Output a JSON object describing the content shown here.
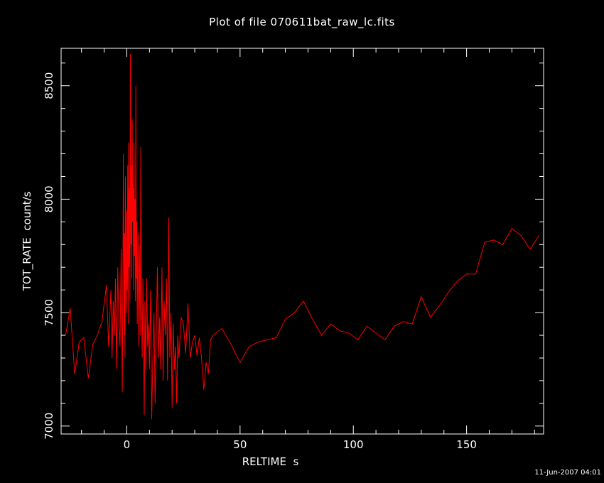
{
  "title": "Plot of file 070611bat_raw_lc.fits",
  "timestamp": "11-Jun-2007 04:01",
  "colors": {
    "background": "#000000",
    "axes": "#ffffff",
    "series": "#ff0000"
  },
  "chart_data": {
    "type": "line",
    "title": "Plot of file 070611bat_raw_lc.fits",
    "xlabel": "RELTIME  s",
    "ylabel": "TOT_RATE  count/s",
    "xlim": [
      -29,
      184
    ],
    "ylim": [
      6965,
      8665
    ],
    "x_ticks": [
      0,
      50,
      100,
      150
    ],
    "y_ticks": [
      7000,
      7500,
      8000,
      8500
    ],
    "x_tick_labels": [
      "0",
      "50",
      "100",
      "150"
    ],
    "y_tick_labels": [
      "7000",
      "7500",
      "8000",
      "8500"
    ],
    "grid": false,
    "series": [
      {
        "x": [
          -27,
          -25,
          -23,
          -21,
          -19,
          -17,
          -15,
          -13,
          -11,
          -9,
          -8,
          -7,
          -6.5,
          -6,
          -5.5,
          -5,
          -4.5,
          -4,
          -3.5,
          -3,
          -2.5,
          -2,
          -1.8,
          -1.5,
          -1.2,
          -1,
          -0.8,
          -0.6,
          -0.4,
          -0.2,
          0,
          0.2,
          0.4,
          0.6,
          0.8,
          1,
          1.2,
          1.4,
          1.6,
          1.8,
          2,
          2.2,
          2.4,
          2.6,
          2.8,
          3,
          3.2,
          3.4,
          3.6,
          3.8,
          4,
          4.2,
          4.4,
          4.6,
          4.8,
          5,
          5.3,
          5.6,
          5.9,
          6.2,
          6.5,
          6.8,
          7.1,
          7.4,
          7.7,
          8,
          8.4,
          8.8,
          9.2,
          9.6,
          10,
          10.5,
          11,
          11.5,
          12,
          12.5,
          13,
          13.5,
          14,
          14.5,
          15,
          15.5,
          16,
          16.5,
          17,
          17.5,
          18,
          18.5,
          19,
          19.5,
          20,
          20.5,
          21,
          21.5,
          22,
          22.5,
          23,
          24,
          25,
          26,
          27,
          28,
          29,
          30,
          31,
          32,
          33,
          34,
          35,
          36,
          37,
          38,
          42,
          46,
          50,
          54,
          58,
          62,
          66,
          70,
          74,
          78,
          82,
          86,
          90,
          94,
          98,
          102,
          106,
          110,
          114,
          118,
          122,
          126,
          130,
          134,
          138,
          142,
          146,
          150,
          154,
          158,
          162,
          166,
          170,
          174,
          178,
          182
        ],
        "y": [
          7400,
          7520,
          7230,
          7370,
          7390,
          7210,
          7360,
          7400,
          7460,
          7620,
          7350,
          7600,
          7300,
          7550,
          7400,
          7650,
          7250,
          7700,
          7450,
          7350,
          7780,
          7150,
          7500,
          8200,
          7400,
          7850,
          7300,
          8100,
          7650,
          7500,
          7950,
          7600,
          8150,
          7450,
          8250,
          7700,
          8050,
          7550,
          8640,
          7800,
          8150,
          7650,
          8350,
          7900,
          8050,
          7600,
          8250,
          7750,
          8000,
          7550,
          8500,
          7650,
          7900,
          7450,
          7700,
          7850,
          7350,
          7800,
          7400,
          8230,
          7500,
          7300,
          7650,
          7350,
          7050,
          7550,
          7250,
          7650,
          7350,
          7450,
          7250,
          7600,
          7030,
          7300,
          7500,
          7100,
          7400,
          7700,
          7300,
          7480,
          7250,
          7700,
          7200,
          7550,
          7400,
          7650,
          7200,
          7920,
          7300,
          7500,
          7080,
          7450,
          7250,
          7350,
          7100,
          7400,
          7300,
          7480,
          7450,
          7320,
          7540,
          7300,
          7370,
          7400,
          7310,
          7390,
          7300,
          7160,
          7280,
          7230,
          7380,
          7400,
          7430,
          7360,
          7280,
          7350,
          7370,
          7380,
          7390,
          7470,
          7500,
          7550,
          7470,
          7400,
          7450,
          7420,
          7410,
          7380,
          7440,
          7410,
          7380,
          7440,
          7460,
          7450,
          7570,
          7480,
          7530,
          7590,
          7640,
          7670,
          7670,
          7810,
          7820,
          7800,
          7870,
          7840,
          7780,
          7840
        ]
      }
    ]
  }
}
